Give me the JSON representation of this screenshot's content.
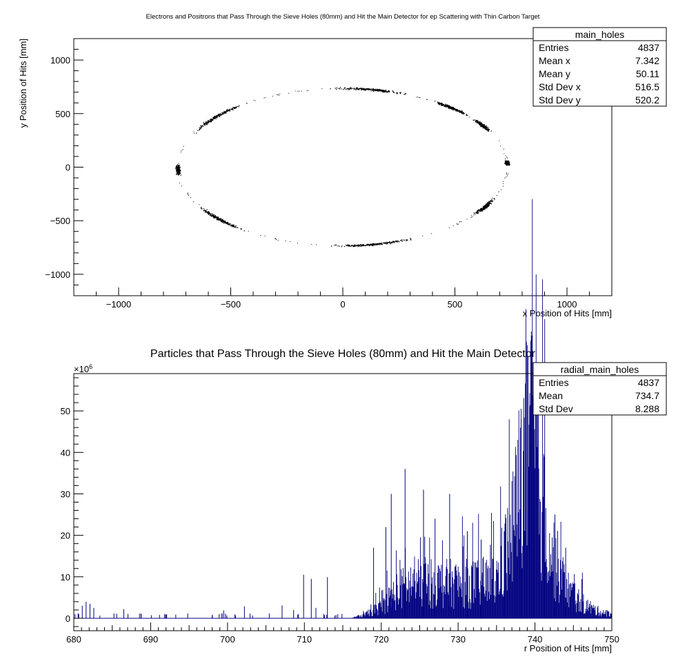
{
  "chart_data": [
    {
      "type": "scatter",
      "title": "Electrons and Positrons that Pass Through the Sieve Holes (80mm) and Hit the Main Detector for ep Scattering with Thin Carbon Target",
      "xlabel": "x Position of Hits [mm]",
      "ylabel": "y Position of Hits [mm]",
      "xlim": [
        -1200,
        1200
      ],
      "ylim": [
        -1200,
        1200
      ],
      "xticks": [
        -1000,
        -500,
        0,
        500,
        1000
      ],
      "yticks": [
        -1000,
        -500,
        0,
        500,
        1000
      ],
      "xtick_labels": [
        "−1000",
        "−500",
        "0",
        "500",
        "1000"
      ],
      "ytick_labels": [
        "−1000",
        "−500",
        "0",
        "500",
        "1000"
      ],
      "grid": false,
      "legend": "top-right",
      "marker_color": "#000000",
      "ring_radius_mm": 735,
      "clusters": [
        {
          "angle_deg": 80,
          "spread_deg": 16
        },
        {
          "angle_deg": 49,
          "spread_deg": 9
        },
        {
          "angle_deg": 32,
          "spread_deg": 6
        },
        {
          "angle_deg": 3,
          "spread_deg": 2
        },
        {
          "angle_deg": -30,
          "spread_deg": 8
        },
        {
          "angle_deg": -80,
          "spread_deg": 17
        },
        {
          "angle_deg": -138,
          "spread_deg": 14
        },
        {
          "angle_deg": -178,
          "spread_deg": 5
        },
        {
          "angle_deg": 140,
          "spread_deg": 16
        }
      ],
      "stats": {
        "name": "main_holes",
        "rows": [
          {
            "label": "Entries",
            "value": "4837"
          },
          {
            "label": "Mean x",
            "value": "7.342"
          },
          {
            "label": "Mean y",
            "value": "50.11"
          },
          {
            "label": "Std Dev x",
            "value": "516.5"
          },
          {
            "label": "Std Dev y",
            "value": "520.2"
          }
        ]
      }
    },
    {
      "type": "bar",
      "title": "Particles that Pass Through the Sieve Holes (80mm) and Hit the Main Detector",
      "xlabel": "r Position of Hits [mm]",
      "ylabel": "",
      "y_multiplier": "×10",
      "y_multiplier_exp": "6",
      "xlim": [
        680,
        750
      ],
      "ylim": [
        -3,
        59
      ],
      "xticks": [
        680,
        690,
        700,
        710,
        720,
        730,
        740,
        750
      ],
      "yticks": [
        0,
        10,
        20,
        30,
        40,
        50
      ],
      "line_color": "#000080",
      "grid": false,
      "legend": "top-right",
      "envelope": [
        {
          "x": 680,
          "y": 0
        },
        {
          "x": 716,
          "y": 0
        },
        {
          "x": 718,
          "y": 1
        },
        {
          "x": 720,
          "y": 3
        },
        {
          "x": 722,
          "y": 7
        },
        {
          "x": 724,
          "y": 9
        },
        {
          "x": 727,
          "y": 9
        },
        {
          "x": 730,
          "y": 9
        },
        {
          "x": 733,
          "y": 9
        },
        {
          "x": 735,
          "y": 10
        },
        {
          "x": 737,
          "y": 22
        },
        {
          "x": 738.5,
          "y": 40
        },
        {
          "x": 739.5,
          "y": 45
        },
        {
          "x": 741,
          "y": 30
        },
        {
          "x": 742,
          "y": 18
        },
        {
          "x": 744,
          "y": 8
        },
        {
          "x": 746,
          "y": 4
        },
        {
          "x": 748,
          "y": 2
        },
        {
          "x": 750,
          "y": 1
        }
      ],
      "early_spikes": [
        {
          "x": 681.1,
          "y": 3
        },
        {
          "x": 681.6,
          "y": 4
        },
        {
          "x": 682.1,
          "y": 3.5
        },
        {
          "x": 682.6,
          "y": 2.5
        },
        {
          "x": 686.5,
          "y": 2.2
        },
        {
          "x": 699.5,
          "y": 1.9
        },
        {
          "x": 702.2,
          "y": 2.9
        },
        {
          "x": 707.1,
          "y": 3.1
        },
        {
          "x": 709.9,
          "y": 10.5
        },
        {
          "x": 710.9,
          "y": 9.5
        },
        {
          "x": 713.0,
          "y": 9.9
        },
        {
          "x": 711.5,
          "y": 2.5
        },
        {
          "x": 708.6,
          "y": 2
        }
      ],
      "tall_spikes": [
        {
          "x": 719.0,
          "y": 17
        },
        {
          "x": 720.6,
          "y": 22
        },
        {
          "x": 721.3,
          "y": 30
        },
        {
          "x": 723.1,
          "y": 36
        },
        {
          "x": 725.5,
          "y": 31
        },
        {
          "x": 727.0,
          "y": 24
        },
        {
          "x": 728.9,
          "y": 30
        },
        {
          "x": 731.2,
          "y": 21
        },
        {
          "x": 733.0,
          "y": 19
        },
        {
          "x": 736.0,
          "y": 21
        },
        {
          "x": 738.2,
          "y": 48
        },
        {
          "x": 738.8,
          "y": 44
        },
        {
          "x": 739.3,
          "y": 51
        },
        {
          "x": 739.8,
          "y": 58
        },
        {
          "x": 740.4,
          "y": 46
        },
        {
          "x": 741.2,
          "y": 39
        },
        {
          "x": 742.6,
          "y": 25
        },
        {
          "x": 744.0,
          "y": 17
        }
      ],
      "stats": {
        "name": "radial_main_holes",
        "rows": [
          {
            "label": "Entries",
            "value": "4837"
          },
          {
            "label": "Mean",
            "value": "734.7"
          },
          {
            "label": "Std Dev",
            "value": "8.288"
          }
        ]
      }
    }
  ]
}
